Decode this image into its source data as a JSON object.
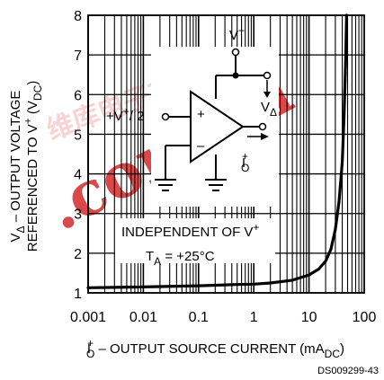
{
  "chart_data": {
    "type": "line",
    "xscale": "log",
    "xlim": [
      0.001,
      100
    ],
    "ylim": [
      1,
      8
    ],
    "x_tick_labels": [
      "0.001",
      "0.01",
      "0.1",
      "1",
      "10",
      "100"
    ],
    "y_tick_labels": [
      "1",
      "2",
      "3",
      "4",
      "5",
      "6",
      "7",
      "8"
    ],
    "grid": true,
    "xlabel_prefix": "I",
    "xlabel_sup": "+",
    "xlabel_sub": "O",
    "xlabel_main": " – OUTPUT SOURCE CURRENT (mA",
    "xlabel_unit_sub": "DC",
    "xlabel_close": ")",
    "ylabel_line1_prefix": "V",
    "ylabel_line1_sub": "Δ",
    "ylabel_line1_text": " – OUTPUT VOLTAGE",
    "ylabel_line2_text": "REFERENCED TO V",
    "ylabel_line2_sup": "+",
    "ylabel_line2_paren": " (V",
    "ylabel_line2_sub": "DC",
    "ylabel_line2_close": ")",
    "annotation_independent": "INDEPENDENT OF V",
    "annotation_independent_sup": "+",
    "annotation_ta_prefix": "T",
    "annotation_ta_sub": "A",
    "annotation_ta_text": " = +25°C",
    "circuit": {
      "input_label": "+V",
      "input_sup": "+",
      "input_div": "/ 2",
      "supply_label": "V",
      "supply_sup": "+",
      "output_label": "V",
      "output_sub": "Δ",
      "current_label": "I",
      "current_sup": "+",
      "current_sub": "O",
      "plus": "+",
      "minus": "–"
    },
    "series": [
      {
        "x": [
          0.001,
          0.01,
          0.1,
          0.5,
          1,
          2,
          5,
          10,
          15,
          20,
          25,
          30,
          35,
          40,
          43,
          46,
          48
        ],
        "y": [
          1.13,
          1.15,
          1.18,
          1.21,
          1.22,
          1.25,
          1.32,
          1.45,
          1.6,
          1.8,
          2.1,
          2.6,
          3.3,
          4.3,
          5.4,
          6.8,
          8.0
        ]
      }
    ],
    "colors": {
      "line": "#000000",
      "grid": "#000000",
      "watermark": "#d42a2a"
    }
  },
  "watermark": {
    "text": ".com.cn",
    "script_text": "维库电子市场网"
  },
  "credit": "DS009299-43"
}
